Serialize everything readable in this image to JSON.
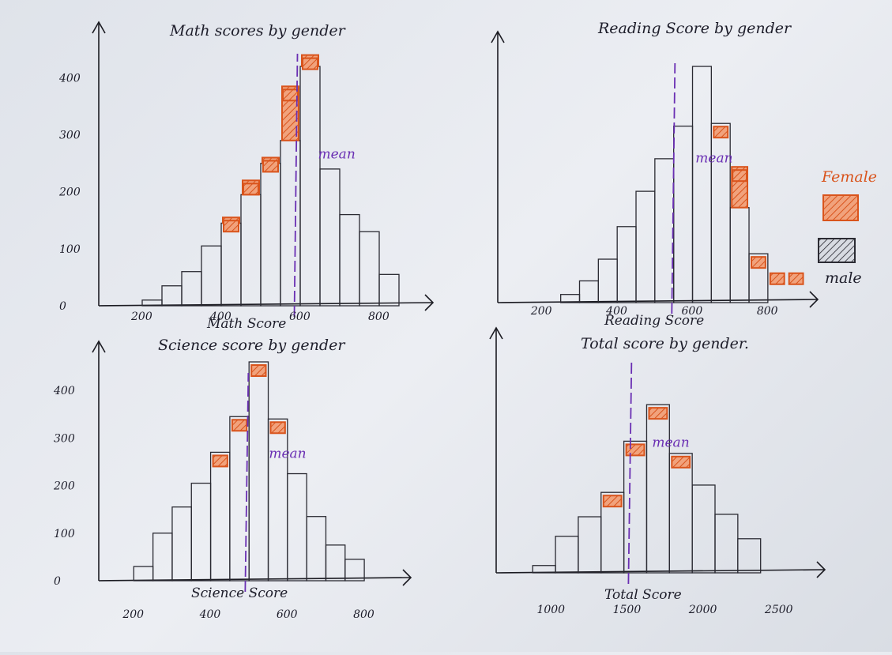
{
  "legend": {
    "female_label": "Female",
    "male_label": "male",
    "female_color": "#d9541c",
    "male_color": "#2b2b33"
  },
  "mean_label": "mean",
  "chart_data": [
    {
      "type": "bar",
      "title": "Math scores by gender",
      "xlabel": "Math Score",
      "ylabel": "",
      "xlim": [
        150,
        880
      ],
      "ylim": [
        0,
        470
      ],
      "x_ticks": [
        "200",
        "400",
        "600",
        "800"
      ],
      "x_tick_values": [
        200,
        400,
        600,
        800
      ],
      "y_ticks": [
        "400",
        "300",
        "200",
        "100",
        "0"
      ],
      "y_tick_values": [
        400,
        300,
        200,
        100,
        0
      ],
      "bin_width": 50,
      "bins": [
        200,
        250,
        300,
        350,
        400,
        450,
        500,
        550,
        600,
        650,
        700,
        750,
        800
      ],
      "series": [
        {
          "name": "male",
          "values": [
            10,
            35,
            60,
            105,
            145,
            195,
            250,
            290,
            420,
            240,
            160,
            130,
            55
          ]
        },
        {
          "name": "Female",
          "values": [
            0,
            0,
            0,
            0,
            155,
            220,
            260,
            385,
            440,
            0,
            0,
            0,
            0
          ]
        }
      ],
      "mean": 585,
      "female_marker_bins": [
        400,
        450,
        500,
        550,
        600
      ]
    },
    {
      "type": "bar",
      "title": "Reading Score by gender",
      "xlabel": "Reading Score",
      "ylabel": "",
      "xlim": [
        150,
        880
      ],
      "ylim": [
        0,
        470
      ],
      "x_ticks": [
        "200",
        "400",
        "600",
        "800"
      ],
      "x_tick_values": [
        200,
        400,
        600,
        800
      ],
      "y_ticks": [],
      "y_tick_values": [],
      "bin_width": 50,
      "bins": [
        250,
        300,
        350,
        400,
        450,
        500,
        550,
        600,
        650,
        700,
        750
      ],
      "series": [
        {
          "name": "male",
          "values": [
            15,
            40,
            80,
            140,
            205,
            265,
            325,
            435,
            330,
            175,
            90
          ]
        },
        {
          "name": "Female",
          "values": [
            0,
            0,
            0,
            0,
            0,
            0,
            0,
            0,
            310,
            250,
            0
          ]
        }
      ],
      "mean": 545,
      "female_marker_bins": [
        650,
        700,
        750,
        800,
        850
      ]
    },
    {
      "type": "bar",
      "title": "Science score by gender",
      "xlabel": "Science Score",
      "ylabel": "",
      "xlim": [
        150,
        880
      ],
      "ylim": [
        0,
        470
      ],
      "x_ticks": [
        "200",
        "400",
        "600",
        "800"
      ],
      "x_tick_values": [
        200,
        400,
        600,
        800
      ],
      "y_ticks": [
        "400",
        "300",
        "200",
        "100",
        "0"
      ],
      "y_tick_values": [
        400,
        300,
        200,
        100,
        0
      ],
      "bin_width": 50,
      "bins": [
        200,
        250,
        300,
        350,
        400,
        450,
        500,
        550,
        600,
        650,
        700,
        750
      ],
      "series": [
        {
          "name": "male",
          "values": [
            30,
            100,
            155,
            205,
            270,
            345,
            460,
            340,
            225,
            135,
            75,
            45
          ]
        },
        {
          "name": "Female",
          "values": [
            0,
            0,
            0,
            0,
            0,
            0,
            0,
            0,
            0,
            0,
            0,
            0
          ]
        }
      ],
      "mean": 490,
      "female_marker_bins": [
        400,
        450,
        500,
        550
      ]
    },
    {
      "type": "bar",
      "title": "Total score by gender.",
      "xlabel": "Total Score",
      "ylabel": "",
      "xlim": [
        800,
        2750
      ],
      "ylim": [
        0,
        470
      ],
      "x_ticks": [
        "1000",
        "1500",
        "2000",
        "2500"
      ],
      "x_tick_values": [
        1000,
        1500,
        2000,
        2500
      ],
      "y_ticks": [],
      "y_tick_values": [],
      "bin_width": 150,
      "bins": [
        900,
        1050,
        1200,
        1350,
        1500,
        1650,
        1800,
        1950,
        2100,
        2250
      ],
      "series": [
        {
          "name": "male",
          "values": [
            15,
            75,
            115,
            165,
            270,
            345,
            245,
            180,
            120,
            70
          ]
        },
        {
          "name": "Female",
          "values": [
            0,
            0,
            0,
            0,
            0,
            0,
            0,
            0,
            0,
            0
          ]
        }
      ],
      "mean": 1530,
      "female_marker_bins": [
        1350,
        1500,
        1650,
        1800
      ]
    }
  ]
}
